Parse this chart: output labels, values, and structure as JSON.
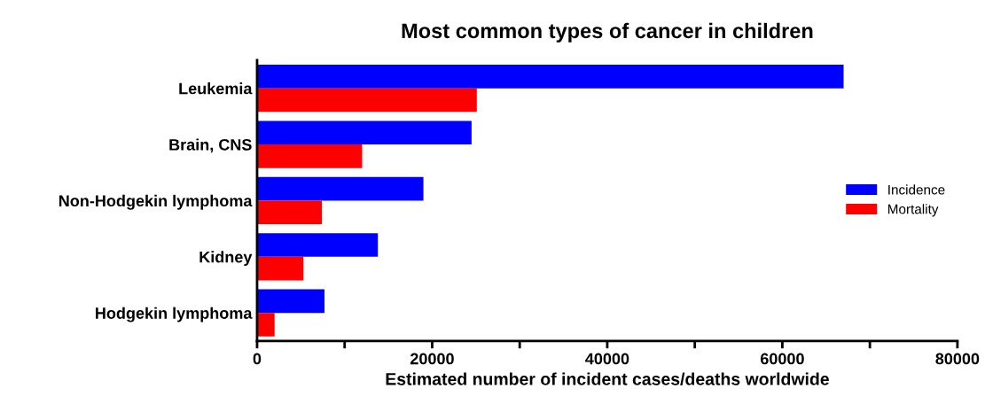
{
  "chart_data": {
    "type": "bar",
    "orientation": "horizontal",
    "title": "Most common types of cancer in children",
    "xlabel": "Estimated number of incident cases/deaths worldwide",
    "categories": [
      "Leukemia",
      "Brain, CNS",
      "Non-Hodgekin lymphoma",
      "Kidney",
      "Hodgekin lymphoma"
    ],
    "series": [
      {
        "name": "Incidence",
        "color": "#0000ff",
        "values": [
          67000,
          24500,
          19000,
          13800,
          7700
        ]
      },
      {
        "name": "Mortality",
        "color": "#ff0000",
        "values": [
          25100,
          12000,
          7400,
          5300,
          2000
        ]
      }
    ],
    "xlim": [
      0,
      80000
    ],
    "xticks": [
      0,
      {
        "value": 10000,
        "label": null
      },
      20000,
      {
        "value": 30000,
        "label": null
      },
      40000,
      {
        "value": 50000,
        "label": null
      },
      60000,
      {
        "value": 70000,
        "label": null
      },
      80000
    ],
    "grid": false,
    "legend": "right"
  }
}
